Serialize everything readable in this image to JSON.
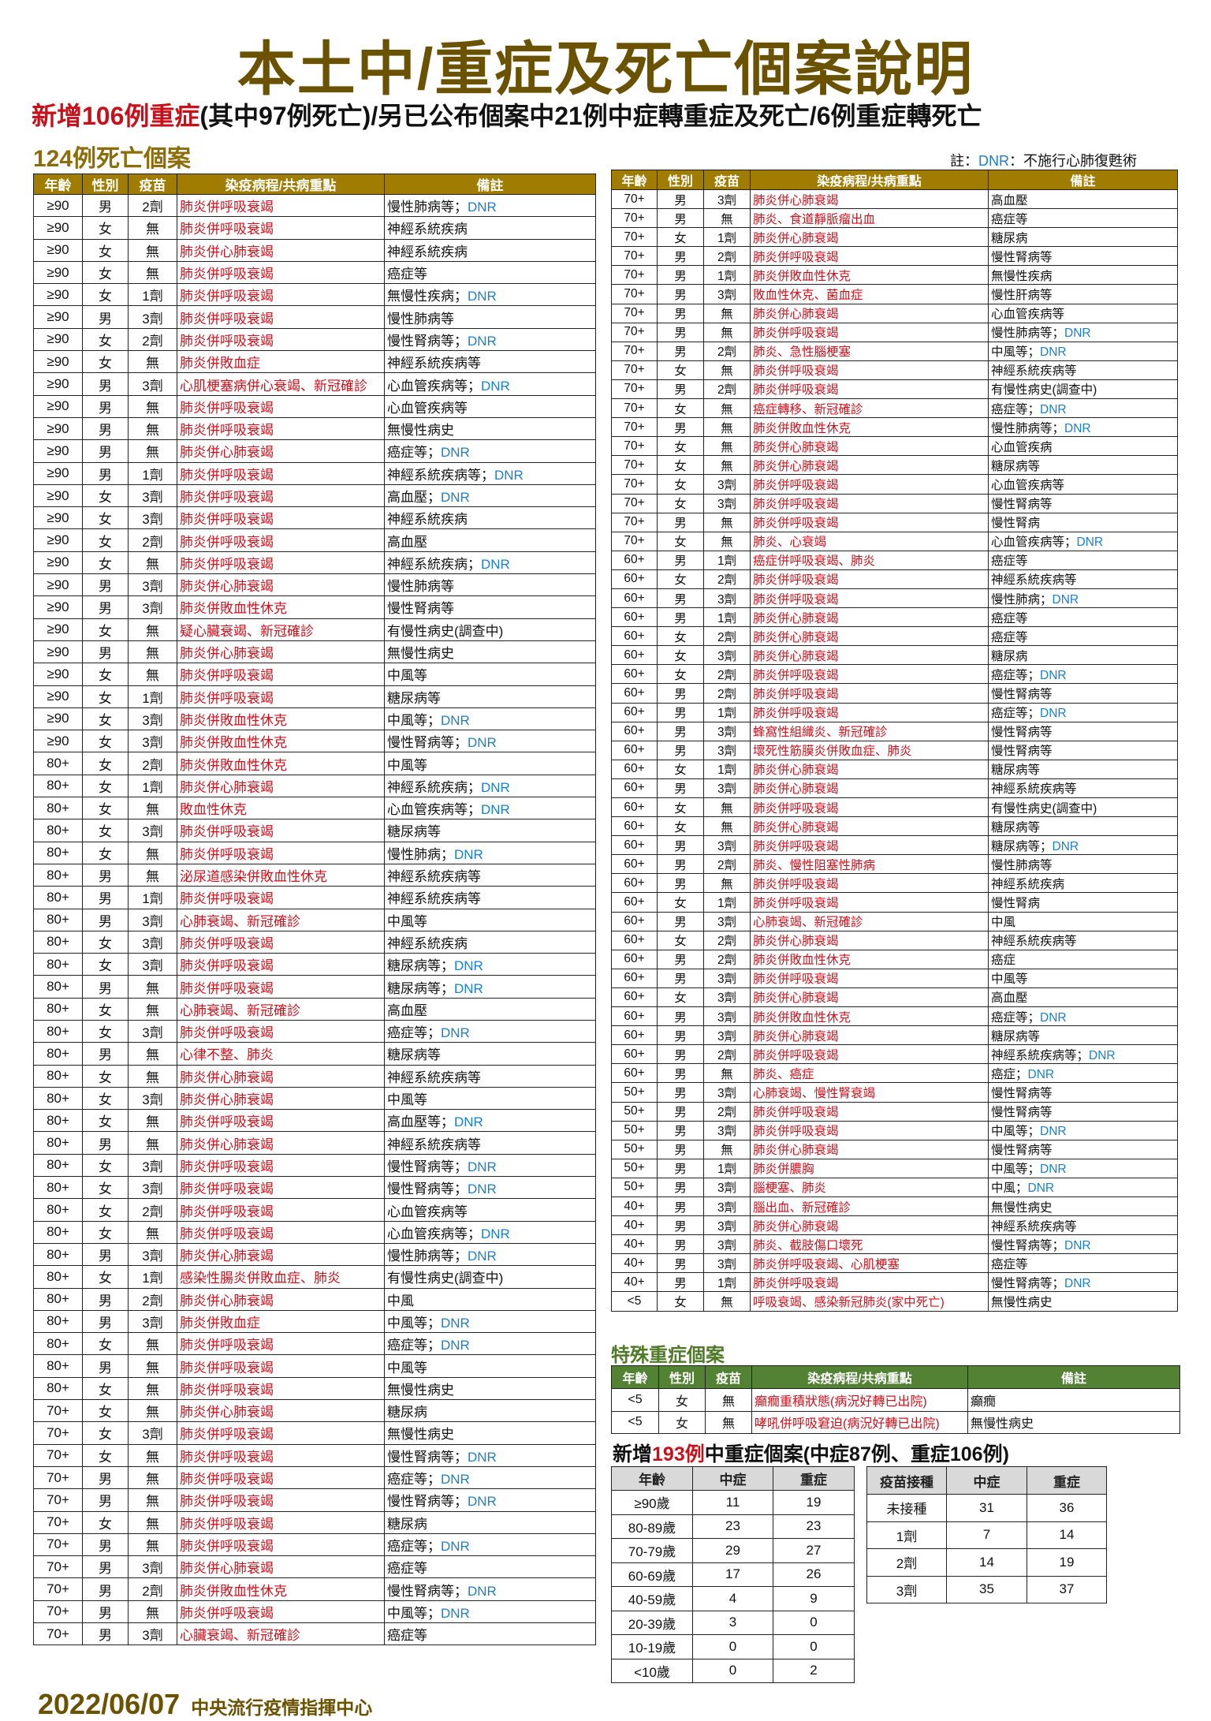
{
  "title": "本土中/重症及死亡個案說明",
  "subtitle": {
    "highlight": "新增106例重症",
    "rest": "(其中97例死亡)/另已公布個案中21例中症轉重症及死亡/6例重症轉死亡"
  },
  "deaths_title": "124例死亡個案",
  "note": {
    "prefix": "註：",
    "dnr": "DNR",
    "text": "：不施行心肺復甦術"
  },
  "columns": [
    "年齡",
    "性別",
    "疫苗",
    "染疫病程/共病重點",
    "備註"
  ],
  "colors": {
    "header_gold": "#a07c00",
    "header_green": "#548235",
    "red_text": "#d0101b",
    "dnr_blue": "#1a7fcf",
    "title_brown": "#6b5200"
  },
  "left_table": {
    "rows": [
      [
        "≥90",
        "男",
        "2劑",
        "肺炎併呼吸衰竭",
        "慢性肺病等；",
        "DNR"
      ],
      [
        "≥90",
        "女",
        "無",
        "肺炎併呼吸衰竭",
        "神經系統疾病",
        ""
      ],
      [
        "≥90",
        "女",
        "無",
        "肺炎併心肺衰竭",
        "神經系統疾病",
        ""
      ],
      [
        "≥90",
        "女",
        "無",
        "肺炎併呼吸衰竭",
        "癌症等",
        ""
      ],
      [
        "≥90",
        "女",
        "1劑",
        "肺炎併呼吸衰竭",
        "無慢性疾病；",
        "DNR"
      ],
      [
        "≥90",
        "男",
        "3劑",
        "肺炎併呼吸衰竭",
        "慢性肺病等",
        ""
      ],
      [
        "≥90",
        "女",
        "2劑",
        "肺炎併呼吸衰竭",
        "慢性腎病等；",
        "DNR"
      ],
      [
        "≥90",
        "女",
        "無",
        "肺炎併敗血症",
        "神經系統疾病等",
        ""
      ],
      [
        "≥90",
        "男",
        "3劑",
        "心肌梗塞病併心衰竭、新冠確診",
        "心血管疾病等；",
        "DNR"
      ],
      [
        "≥90",
        "男",
        "無",
        "肺炎併呼吸衰竭",
        "心血管疾病等",
        ""
      ],
      [
        "≥90",
        "男",
        "無",
        "肺炎併呼吸衰竭",
        "無慢性病史",
        ""
      ],
      [
        "≥90",
        "男",
        "無",
        "肺炎併心肺衰竭",
        "癌症等；",
        "DNR"
      ],
      [
        "≥90",
        "男",
        "1劑",
        "肺炎併呼吸衰竭",
        "神經系統疾病等；",
        "DNR"
      ],
      [
        "≥90",
        "女",
        "3劑",
        "肺炎併呼吸衰竭",
        "高血壓；",
        "DNR"
      ],
      [
        "≥90",
        "女",
        "3劑",
        "肺炎併呼吸衰竭",
        "神經系統疾病",
        ""
      ],
      [
        "≥90",
        "女",
        "2劑",
        "肺炎併呼吸衰竭",
        "高血壓",
        ""
      ],
      [
        "≥90",
        "女",
        "無",
        "肺炎併呼吸衰竭",
        "神經系統疾病；",
        "DNR"
      ],
      [
        "≥90",
        "男",
        "3劑",
        "肺炎併心肺衰竭",
        "慢性肺病等",
        ""
      ],
      [
        "≥90",
        "男",
        "3劑",
        "肺炎併敗血性休克",
        "慢性腎病等",
        ""
      ],
      [
        "≥90",
        "女",
        "無",
        "疑心臟衰竭、新冠確診",
        "有慢性病史(調查中)",
        ""
      ],
      [
        "≥90",
        "男",
        "無",
        "肺炎併心肺衰竭",
        "無慢性病史",
        ""
      ],
      [
        "≥90",
        "女",
        "無",
        "肺炎併呼吸衰竭",
        "中風等",
        ""
      ],
      [
        "≥90",
        "女",
        "1劑",
        "肺炎併呼吸衰竭",
        "糖尿病等",
        ""
      ],
      [
        "≥90",
        "女",
        "3劑",
        "肺炎併敗血性休克",
        "中風等；",
        "DNR"
      ],
      [
        "≥90",
        "女",
        "3劑",
        "肺炎併敗血性休克",
        "慢性腎病等；",
        "DNR"
      ],
      [
        "80+",
        "女",
        "2劑",
        "肺炎併敗血性休克",
        "中風等",
        ""
      ],
      [
        "80+",
        "女",
        "1劑",
        "肺炎併心肺衰竭",
        "神經系統疾病；",
        "DNR"
      ],
      [
        "80+",
        "女",
        "無",
        "敗血性休克",
        "心血管疾病等；",
        "DNR"
      ],
      [
        "80+",
        "女",
        "3劑",
        "肺炎併呼吸衰竭",
        "糖尿病等",
        ""
      ],
      [
        "80+",
        "女",
        "無",
        "肺炎併呼吸衰竭",
        "慢性肺病；",
        "DNR"
      ],
      [
        "80+",
        "男",
        "無",
        "泌尿道感染併敗血性休克",
        "神經系統疾病等",
        ""
      ],
      [
        "80+",
        "男",
        "1劑",
        "肺炎併呼吸衰竭",
        "神經系統疾病等",
        ""
      ],
      [
        "80+",
        "男",
        "3劑",
        "心肺衰竭、新冠確診",
        "中風等",
        ""
      ],
      [
        "80+",
        "女",
        "3劑",
        "肺炎併呼吸衰竭",
        "神經系統疾病",
        ""
      ],
      [
        "80+",
        "女",
        "3劑",
        "肺炎併呼吸衰竭",
        "糖尿病等；",
        "DNR"
      ],
      [
        "80+",
        "男",
        "無",
        "肺炎併呼吸衰竭",
        "糖尿病等；",
        "DNR"
      ],
      [
        "80+",
        "女",
        "無",
        "心肺衰竭、新冠確診",
        "高血壓",
        ""
      ],
      [
        "80+",
        "女",
        "3劑",
        "肺炎併呼吸衰竭",
        "癌症等；",
        "DNR"
      ],
      [
        "80+",
        "男",
        "無",
        "心律不整、肺炎",
        "糖尿病等",
        ""
      ],
      [
        "80+",
        "女",
        "無",
        "肺炎併心肺衰竭",
        "神經系統疾病等",
        ""
      ],
      [
        "80+",
        "女",
        "3劑",
        "肺炎併心肺衰竭",
        "中風等",
        ""
      ],
      [
        "80+",
        "女",
        "無",
        "肺炎併呼吸衰竭",
        "高血壓等；",
        "DNR"
      ],
      [
        "80+",
        "男",
        "無",
        "肺炎併心肺衰竭",
        "神經系統疾病等",
        ""
      ],
      [
        "80+",
        "女",
        "3劑",
        "肺炎併呼吸衰竭",
        "慢性腎病等；",
        "DNR"
      ],
      [
        "80+",
        "女",
        "3劑",
        "肺炎併呼吸衰竭",
        "慢性腎病等；",
        "DNR"
      ],
      [
        "80+",
        "女",
        "2劑",
        "肺炎併呼吸衰竭",
        "心血管疾病等",
        ""
      ],
      [
        "80+",
        "女",
        "無",
        "肺炎併呼吸衰竭",
        "心血管疾病等；",
        "DNR"
      ],
      [
        "80+",
        "男",
        "3劑",
        "肺炎併心肺衰竭",
        "慢性肺病等；",
        "DNR"
      ],
      [
        "80+",
        "女",
        "1劑",
        "感染性腸炎併敗血症、肺炎",
        "有慢性病史(調查中)",
        ""
      ],
      [
        "80+",
        "男",
        "2劑",
        "肺炎併心肺衰竭",
        "中風",
        ""
      ],
      [
        "80+",
        "男",
        "3劑",
        "肺炎併敗血症",
        "中風等；",
        "DNR"
      ],
      [
        "80+",
        "女",
        "無",
        "肺炎併呼吸衰竭",
        "癌症等；",
        "DNR"
      ],
      [
        "80+",
        "男",
        "無",
        "肺炎併呼吸衰竭",
        "中風等",
        ""
      ],
      [
        "80+",
        "女",
        "無",
        "肺炎併呼吸衰竭",
        "無慢性病史",
        ""
      ],
      [
        "70+",
        "女",
        "無",
        "肺炎併心肺衰竭",
        "糖尿病",
        ""
      ],
      [
        "70+",
        "女",
        "3劑",
        "肺炎併呼吸衰竭",
        "無慢性病史",
        ""
      ],
      [
        "70+",
        "女",
        "無",
        "肺炎併呼吸衰竭",
        "慢性腎病等；",
        "DNR"
      ],
      [
        "70+",
        "男",
        "無",
        "肺炎併呼吸衰竭",
        "癌症等；",
        "DNR"
      ],
      [
        "70+",
        "男",
        "無",
        "肺炎併呼吸衰竭",
        "慢性腎病等；",
        "DNR"
      ],
      [
        "70+",
        "女",
        "無",
        "肺炎併呼吸衰竭",
        "糖尿病",
        ""
      ],
      [
        "70+",
        "男",
        "無",
        "肺炎併呼吸衰竭",
        "癌症等；",
        "DNR"
      ],
      [
        "70+",
        "男",
        "3劑",
        "肺炎併心肺衰竭",
        "癌症等",
        ""
      ],
      [
        "70+",
        "男",
        "2劑",
        "肺炎併敗血性休克",
        "慢性腎病等；",
        "DNR"
      ],
      [
        "70+",
        "男",
        "無",
        "肺炎併呼吸衰竭",
        "中風等；",
        "DNR"
      ],
      [
        "70+",
        "男",
        "3劑",
        "心臟衰竭、新冠確診",
        "癌症等",
        ""
      ]
    ]
  },
  "right_table": {
    "rows": [
      [
        "70+",
        "男",
        "3劑",
        "肺炎併心肺衰竭",
        "高血壓",
        ""
      ],
      [
        "70+",
        "男",
        "無",
        "肺炎、食道靜脈瘤出血",
        "癌症等",
        ""
      ],
      [
        "70+",
        "女",
        "1劑",
        "肺炎併心肺衰竭",
        "糖尿病",
        ""
      ],
      [
        "70+",
        "男",
        "2劑",
        "肺炎併呼吸衰竭",
        "慢性腎病等",
        ""
      ],
      [
        "70+",
        "男",
        "1劑",
        "肺炎併敗血性休克",
        "無慢性疾病",
        ""
      ],
      [
        "70+",
        "男",
        "3劑",
        "敗血性休克、菌血症",
        "慢性肝病等",
        ""
      ],
      [
        "70+",
        "男",
        "無",
        "肺炎併心肺衰竭",
        "心血管疾病等",
        ""
      ],
      [
        "70+",
        "男",
        "無",
        "肺炎併呼吸衰竭",
        "慢性肺病等；",
        "DNR"
      ],
      [
        "70+",
        "男",
        "2劑",
        "肺炎、急性腦梗塞",
        "中風等；",
        "DNR"
      ],
      [
        "70+",
        "女",
        "無",
        "肺炎併呼吸衰竭",
        "神經系統疾病等",
        ""
      ],
      [
        "70+",
        "男",
        "2劑",
        "肺炎併呼吸衰竭",
        "有慢性病史(調查中)",
        ""
      ],
      [
        "70+",
        "女",
        "無",
        "癌症轉移、新冠確診",
        "癌症等；",
        "DNR"
      ],
      [
        "70+",
        "男",
        "無",
        "肺炎併敗血性休克",
        "慢性肺病等；",
        "DNR"
      ],
      [
        "70+",
        "女",
        "無",
        "肺炎併心肺衰竭",
        "心血管疾病",
        ""
      ],
      [
        "70+",
        "女",
        "無",
        "肺炎併心肺衰竭",
        "糖尿病等",
        ""
      ],
      [
        "70+",
        "女",
        "3劑",
        "肺炎併呼吸衰竭",
        "心血管疾病等",
        ""
      ],
      [
        "70+",
        "女",
        "3劑",
        "肺炎併呼吸衰竭",
        "慢性腎病等",
        ""
      ],
      [
        "70+",
        "男",
        "無",
        "肺炎併呼吸衰竭",
        "慢性腎病",
        ""
      ],
      [
        "70+",
        "女",
        "無",
        "肺炎、心衰竭",
        "心血管疾病等；",
        "DNR"
      ],
      [
        "60+",
        "男",
        "1劑",
        "癌症併呼吸衰竭、肺炎",
        "癌症等",
        ""
      ],
      [
        "60+",
        "女",
        "2劑",
        "肺炎併呼吸衰竭",
        "神經系統疾病等",
        ""
      ],
      [
        "60+",
        "男",
        "3劑",
        "肺炎併呼吸衰竭",
        "慢性肺病；",
        "DNR"
      ],
      [
        "60+",
        "男",
        "1劑",
        "肺炎併心肺衰竭",
        "癌症等",
        ""
      ],
      [
        "60+",
        "女",
        "2劑",
        "肺炎併心肺衰竭",
        "癌症等",
        ""
      ],
      [
        "60+",
        "女",
        "3劑",
        "肺炎併心肺衰竭",
        "糖尿病",
        ""
      ],
      [
        "60+",
        "女",
        "2劑",
        "肺炎併呼吸衰竭",
        "癌症等；",
        "DNR"
      ],
      [
        "60+",
        "男",
        "2劑",
        "肺炎併呼吸衰竭",
        "慢性腎病等",
        ""
      ],
      [
        "60+",
        "男",
        "1劑",
        "肺炎併呼吸衰竭",
        "癌症等；",
        "DNR"
      ],
      [
        "60+",
        "男",
        "3劑",
        "蜂窩性組織炎、新冠確診",
        "慢性腎病等",
        ""
      ],
      [
        "60+",
        "男",
        "3劑",
        "壞死性筋膜炎併敗血症、肺炎",
        "慢性腎病等",
        ""
      ],
      [
        "60+",
        "女",
        "1劑",
        "肺炎併心肺衰竭",
        "糖尿病等",
        ""
      ],
      [
        "60+",
        "男",
        "3劑",
        "肺炎併心肺衰竭",
        "神經系統疾病等",
        ""
      ],
      [
        "60+",
        "女",
        "無",
        "肺炎併呼吸衰竭",
        "有慢性病史(調查中)",
        ""
      ],
      [
        "60+",
        "女",
        "無",
        "肺炎併心肺衰竭",
        "糖尿病等",
        ""
      ],
      [
        "60+",
        "男",
        "3劑",
        "肺炎併呼吸衰竭",
        "糖尿病等；",
        "DNR"
      ],
      [
        "60+",
        "男",
        "2劑",
        "肺炎、慢性阻塞性肺病",
        "慢性肺病等",
        ""
      ],
      [
        "60+",
        "男",
        "無",
        "肺炎併呼吸衰竭",
        "神經系統疾病",
        ""
      ],
      [
        "60+",
        "女",
        "1劑",
        "肺炎併呼吸衰竭",
        "慢性腎病",
        ""
      ],
      [
        "60+",
        "男",
        "3劑",
        "心肺衰竭、新冠確診",
        "中風",
        ""
      ],
      [
        "60+",
        "女",
        "2劑",
        "肺炎併心肺衰竭",
        "神經系統疾病等",
        ""
      ],
      [
        "60+",
        "男",
        "2劑",
        "肺炎併敗血性休克",
        "癌症",
        ""
      ],
      [
        "60+",
        "男",
        "3劑",
        "肺炎併呼吸衰竭",
        "中風等",
        ""
      ],
      [
        "60+",
        "女",
        "3劑",
        "肺炎併心肺衰竭",
        "高血壓",
        ""
      ],
      [
        "60+",
        "男",
        "3劑",
        "肺炎併敗血性休克",
        "癌症等；",
        "DNR"
      ],
      [
        "60+",
        "男",
        "3劑",
        "肺炎併心肺衰竭",
        "糖尿病等",
        ""
      ],
      [
        "60+",
        "男",
        "2劑",
        "肺炎併呼吸衰竭",
        "神經系統疾病等；",
        "DNR"
      ],
      [
        "60+",
        "男",
        "無",
        "肺炎、癌症",
        "癌症；",
        "DNR"
      ],
      [
        "50+",
        "男",
        "3劑",
        "心肺衰竭、慢性腎衰竭",
        "慢性腎病等",
        ""
      ],
      [
        "50+",
        "男",
        "2劑",
        "肺炎併呼吸衰竭",
        "慢性腎病等",
        ""
      ],
      [
        "50+",
        "男",
        "3劑",
        "肺炎併呼吸衰竭",
        "中風等；",
        "DNR"
      ],
      [
        "50+",
        "男",
        "無",
        "肺炎併心肺衰竭",
        "慢性腎病等",
        ""
      ],
      [
        "50+",
        "男",
        "1劑",
        "肺炎併膿胸",
        "中風等；",
        "DNR"
      ],
      [
        "50+",
        "男",
        "3劑",
        "腦梗塞、肺炎",
        "中風；",
        "DNR"
      ],
      [
        "40+",
        "男",
        "3劑",
        "腦出血、新冠確診",
        "無慢性病史",
        ""
      ],
      [
        "40+",
        "男",
        "3劑",
        "肺炎併心肺衰竭",
        "神經系統疾病等",
        ""
      ],
      [
        "40+",
        "男",
        "3劑",
        "肺炎、截肢傷口壞死",
        "慢性腎病等；",
        "DNR"
      ],
      [
        "40+",
        "男",
        "3劑",
        "肺炎併呼吸衰竭、心肌梗塞",
        "癌症等",
        ""
      ],
      [
        "40+",
        "男",
        "1劑",
        "肺炎併呼吸衰竭",
        "慢性腎病等；",
        "DNR"
      ],
      [
        "<5",
        "女",
        "無",
        "呼吸衰竭、感染新冠肺炎(家中死亡)",
        "無慢性病史",
        ""
      ]
    ]
  },
  "special": {
    "title": "特殊重症個案",
    "rows": [
      [
        "<5",
        "女",
        "無",
        "癲癇重積狀態(病況好轉已出院)",
        "癲癇",
        ""
      ],
      [
        "<5",
        "女",
        "無",
        "哮吼併呼吸窘迫(病況好轉已出院)",
        "無慢性病史",
        ""
      ]
    ]
  },
  "new_cases": {
    "prefix": "新增",
    "highlight": "193例",
    "suffix": "中重症個案(中症87例、重症106例)",
    "age_table": {
      "columns": [
        "年齡",
        "中症",
        "重症"
      ],
      "rows": [
        [
          "≥90歲",
          "11",
          "19"
        ],
        [
          "80-89歲",
          "23",
          "23"
        ],
        [
          "70-79歲",
          "29",
          "27"
        ],
        [
          "60-69歲",
          "17",
          "26"
        ],
        [
          "40-59歲",
          "4",
          "9"
        ],
        [
          "20-39歲",
          "3",
          "0"
        ],
        [
          "10-19歲",
          "0",
          "0"
        ],
        [
          "<10歲",
          "0",
          "2"
        ]
      ]
    },
    "vaccine_table": {
      "columns": [
        "疫苗接種",
        "中症",
        "重症"
      ],
      "rows": [
        [
          "未接種",
          "31",
          "36"
        ],
        [
          "1劑",
          "7",
          "14"
        ],
        [
          "2劑",
          "14",
          "19"
        ],
        [
          "3劑",
          "35",
          "37"
        ]
      ]
    }
  },
  "footer": {
    "date": "2022/06/07",
    "org": "中央流行疫情指揮中心"
  }
}
